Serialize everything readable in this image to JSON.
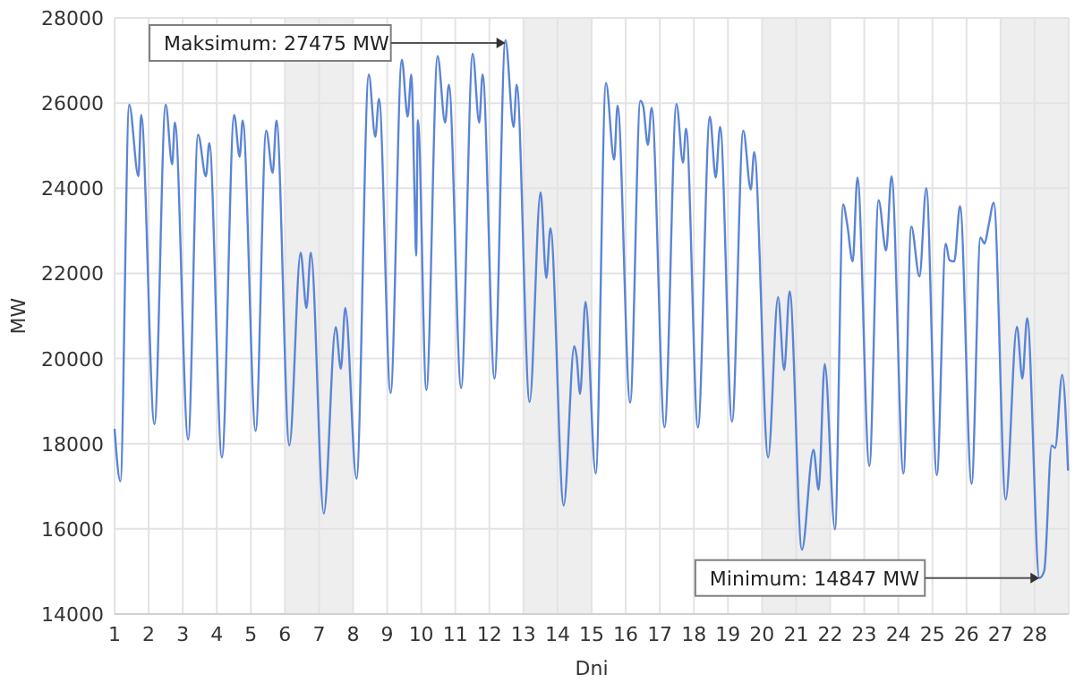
{
  "chart_data": {
    "type": "line",
    "xlabel": "Dni",
    "ylabel": "MW",
    "xlim": [
      1,
      29
    ],
    "xticks": [
      1,
      2,
      3,
      4,
      5,
      6,
      7,
      8,
      9,
      10,
      11,
      12,
      13,
      14,
      15,
      16,
      17,
      18,
      19,
      20,
      21,
      22,
      23,
      24,
      25,
      26,
      27,
      28
    ],
    "ylim": [
      14000,
      28000
    ],
    "yticks": [
      14000,
      16000,
      18000,
      20000,
      22000,
      24000,
      26000,
      28000
    ],
    "grid": true,
    "marker": "none",
    "line_style": "solid",
    "bands": [
      {
        "axis": "x",
        "from": 6,
        "to": 8,
        "color": "#eeeeee"
      },
      {
        "axis": "x",
        "from": 13,
        "to": 15,
        "color": "#eeeeee"
      },
      {
        "axis": "x",
        "from": 20,
        "to": 22,
        "color": "#eeeeee"
      },
      {
        "axis": "x",
        "from": 27,
        "to": 29,
        "color": "#eeeeee"
      }
    ],
    "annotations": [
      {
        "text": "Maksimum: 27475 MW",
        "x": 12.47,
        "y": 27475
      },
      {
        "text": "Minimum: 14847 MW",
        "x": 28.14,
        "y": 14847
      }
    ],
    "series": [
      {
        "color": "#5b84d6",
        "x": [
          1.0,
          1.17,
          1.43,
          1.7,
          1.78,
          2.17,
          2.5,
          2.69,
          2.77,
          3.16,
          3.45,
          3.68,
          3.78,
          4.15,
          4.51,
          4.67,
          4.76,
          5.14,
          5.45,
          5.64,
          5.75,
          6.13,
          6.46,
          6.63,
          6.76,
          7.14,
          7.49,
          7.64,
          7.77,
          8.1,
          8.46,
          8.65,
          8.76,
          9.1,
          9.43,
          9.6,
          9.71,
          9.8,
          9.85,
          9.9,
          10.15,
          10.48,
          10.7,
          10.81,
          11.17,
          11.51,
          11.7,
          11.8,
          12.15,
          12.47,
          12.71,
          12.8,
          13.18,
          13.5,
          13.67,
          13.79,
          14.18,
          14.49,
          14.56,
          14.66,
          14.82,
          15.12,
          15.42,
          15.66,
          15.76,
          16.13,
          16.43,
          16.51,
          16.65,
          16.76,
          17.14,
          17.49,
          17.68,
          17.77,
          18.12,
          18.47,
          18.64,
          18.77,
          19.12,
          19.45,
          19.67,
          19.77,
          20.18,
          20.47,
          20.65,
          20.81,
          21.17,
          21.51,
          21.66,
          21.84,
          22.14,
          22.38,
          22.5,
          22.66,
          22.8,
          23.15,
          23.42,
          23.64,
          23.8,
          24.15,
          24.38,
          24.62,
          24.82,
          25.13,
          25.39,
          25.5,
          25.64,
          25.81,
          26.15,
          26.41,
          26.53,
          26.65,
          26.8,
          27.15,
          27.48,
          27.64,
          27.78,
          28.14,
          28.28,
          28.5,
          28.6,
          28.81,
          28.98
        ],
        "values": [
          18350,
          17120,
          25960,
          24280,
          25720,
          18460,
          25960,
          24560,
          25540,
          18100,
          25260,
          24280,
          25060,
          17680,
          25720,
          24740,
          25590,
          18300,
          25350,
          24360,
          25590,
          17960,
          22490,
          21190,
          22490,
          16360,
          20740,
          19760,
          21190,
          17180,
          26670,
          25210,
          26100,
          19190,
          27020,
          25680,
          26670,
          23970,
          22420,
          25600,
          19260,
          27100,
          25540,
          26430,
          19310,
          27160,
          25540,
          26670,
          19530,
          27475,
          25440,
          26430,
          18980,
          23900,
          21890,
          23060,
          16550,
          20290,
          20040,
          19170,
          21330,
          17300,
          26470,
          24670,
          25940,
          18970,
          26050,
          25940,
          25020,
          25890,
          18390,
          25980,
          24600,
          25400,
          18380,
          25680,
          24250,
          25440,
          18520,
          25350,
          23970,
          24850,
          17680,
          21440,
          19730,
          21580,
          15510,
          17860,
          16920,
          19870,
          15990,
          23620,
          23150,
          22280,
          24250,
          17480,
          23720,
          22540,
          24280,
          17300,
          23100,
          21930,
          24000,
          17260,
          22700,
          22310,
          22280,
          23580,
          17060,
          22840,
          22700,
          23130,
          23660,
          16690,
          20750,
          19530,
          20950,
          14847,
          15010,
          17960,
          17900,
          19620,
          17370
        ]
      }
    ]
  }
}
